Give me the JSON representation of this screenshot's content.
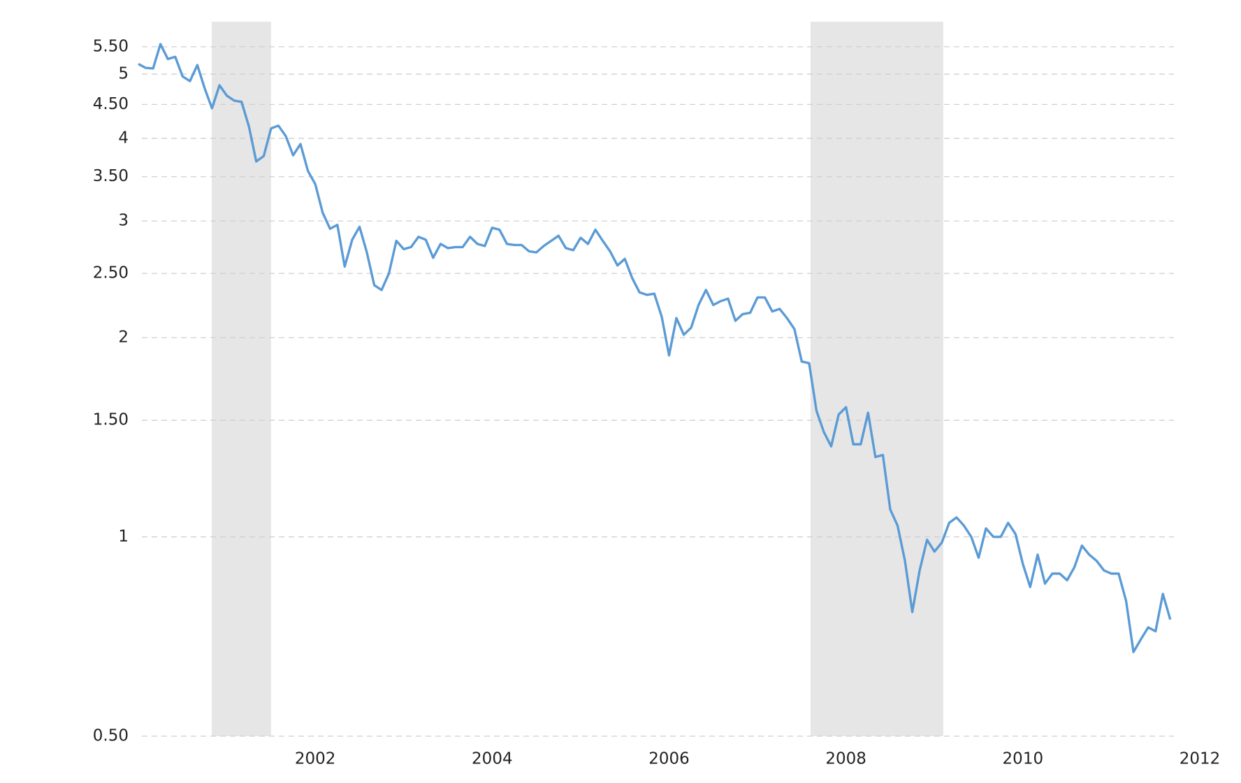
{
  "chart_data": {
    "type": "line",
    "log_y": true,
    "grid": true,
    "xlim": [
      2000,
      2012
    ],
    "xticks": [
      2002,
      2004,
      2006,
      2008,
      2010,
      2012
    ],
    "ylim": [
      0.5,
      5.8
    ],
    "yticks": [
      {
        "value": 0.5,
        "label": "0.50"
      },
      1,
      {
        "value": 1.5,
        "label": "1.50"
      },
      2,
      {
        "value": 2.5,
        "label": "2.50"
      },
      3,
      {
        "value": 3.5,
        "label": "3.50"
      },
      4,
      {
        "value": 4.5,
        "label": "4.50"
      },
      5,
      {
        "value": 5.5,
        "label": "5.50"
      }
    ],
    "shaded_ranges": [
      {
        "start": 2000.83,
        "end": 2001.5,
        "color": "#e6e6e6"
      },
      {
        "start": 2007.6,
        "end": 2009.1,
        "color": "#e6e6e6"
      }
    ],
    "series": [
      {
        "color": "#5b9bd5",
        "x": [
          2000,
          2000.083,
          2000.167,
          2000.25,
          2000.333,
          2000.417,
          2000.5,
          2000.583,
          2000.667,
          2000.75,
          2000.833,
          2000.917,
          2001,
          2001.083,
          2001.167,
          2001.25,
          2001.333,
          2001.417,
          2001.5,
          2001.583,
          2001.667,
          2001.75,
          2001.833,
          2001.917,
          2002,
          2002.083,
          2002.167,
          2002.25,
          2002.333,
          2002.417,
          2002.5,
          2002.583,
          2002.667,
          2002.75,
          2002.833,
          2002.917,
          2003,
          2003.083,
          2003.167,
          2003.25,
          2003.333,
          2003.417,
          2003.5,
          2003.583,
          2003.667,
          2003.75,
          2003.833,
          2003.917,
          2004,
          2004.083,
          2004.167,
          2004.25,
          2004.333,
          2004.417,
          2004.5,
          2004.583,
          2004.667,
          2004.75,
          2004.833,
          2004.917,
          2005,
          2005.083,
          2005.167,
          2005.25,
          2005.333,
          2005.417,
          2005.5,
          2005.583,
          2005.667,
          2005.75,
          2005.833,
          2005.917,
          2006,
          2006.083,
          2006.167,
          2006.25,
          2006.333,
          2006.417,
          2006.5,
          2006.583,
          2006.667,
          2006.75,
          2006.833,
          2006.917,
          2007,
          2007.083,
          2007.167,
          2007.25,
          2007.333,
          2007.417,
          2007.5,
          2007.583,
          2007.667,
          2007.75,
          2007.833,
          2007.917,
          2008,
          2008.083,
          2008.167,
          2008.25,
          2008.333,
          2008.417,
          2008.5,
          2008.583,
          2008.667,
          2008.75,
          2008.833,
          2008.917,
          2009,
          2009.083,
          2009.167,
          2009.25,
          2009.333,
          2009.417,
          2009.5,
          2009.583,
          2009.667,
          2009.75,
          2009.833,
          2009.917,
          2010,
          2010.083,
          2010.167,
          2010.25,
          2010.333,
          2010.417,
          2010.5,
          2010.583,
          2010.667,
          2010.75,
          2010.833,
          2010.917,
          2011,
          2011.083,
          2011.167,
          2011.25,
          2011.333,
          2011.417,
          2011.5,
          2011.583,
          2011.667
        ],
        "values": [
          5.18,
          5.11,
          5.1,
          5.55,
          5.27,
          5.31,
          4.96,
          4.88,
          5.16,
          4.76,
          4.44,
          4.81,
          4.64,
          4.56,
          4.54,
          4.17,
          3.69,
          3.76,
          4.14,
          4.18,
          4.03,
          3.77,
          3.92,
          3.57,
          3.41,
          3.09,
          2.92,
          2.96,
          2.56,
          2.81,
          2.94,
          2.69,
          2.4,
          2.36,
          2.5,
          2.8,
          2.72,
          2.74,
          2.84,
          2.81,
          2.64,
          2.77,
          2.73,
          2.74,
          2.74,
          2.84,
          2.77,
          2.75,
          2.93,
          2.91,
          2.77,
          2.76,
          2.76,
          2.7,
          2.69,
          2.75,
          2.8,
          2.85,
          2.73,
          2.71,
          2.83,
          2.77,
          2.91,
          2.8,
          2.7,
          2.57,
          2.63,
          2.46,
          2.34,
          2.32,
          2.33,
          2.15,
          1.88,
          2.14,
          2.02,
          2.07,
          2.24,
          2.36,
          2.24,
          2.27,
          2.29,
          2.12,
          2.17,
          2.18,
          2.3,
          2.3,
          2.19,
          2.21,
          2.14,
          2.06,
          1.84,
          1.83,
          1.55,
          1.44,
          1.37,
          1.53,
          1.57,
          1.38,
          1.38,
          1.54,
          1.32,
          1.33,
          1.1,
          1.04,
          0.92,
          0.77,
          0.89,
          0.99,
          0.95,
          0.98,
          1.05,
          1.07,
          1.04,
          1.0,
          0.93,
          1.03,
          1.0,
          1.0,
          1.05,
          1.01,
          0.91,
          0.84,
          0.94,
          0.85,
          0.88,
          0.88,
          0.86,
          0.9,
          0.97,
          0.94,
          0.92,
          0.89,
          0.88,
          0.88,
          0.8,
          0.67,
          0.7,
          0.73,
          0.72,
          0.82,
          0.75
        ]
      }
    ]
  }
}
